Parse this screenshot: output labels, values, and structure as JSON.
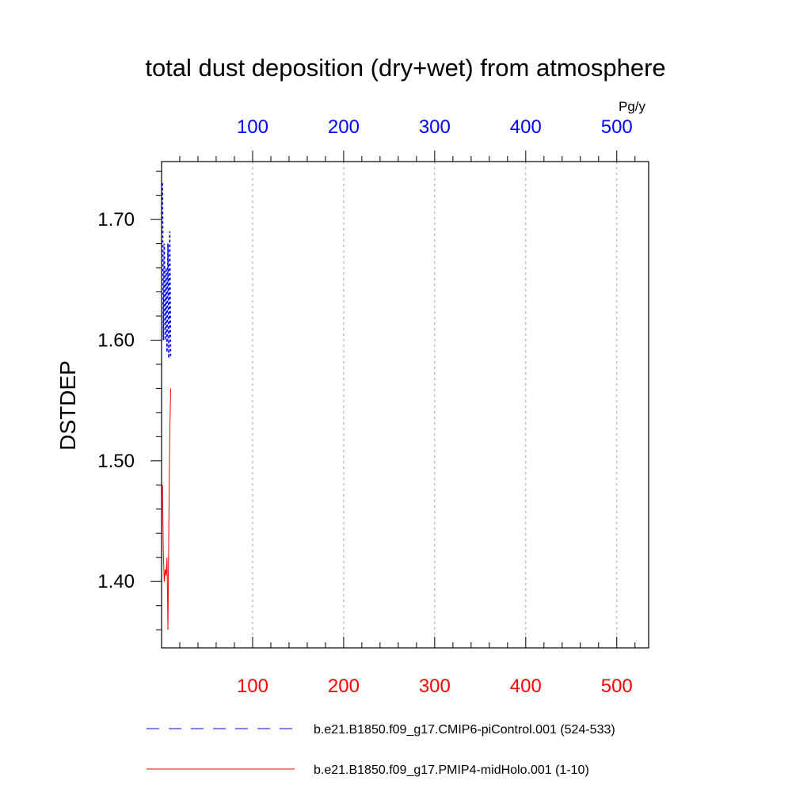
{
  "chart_data": {
    "type": "line",
    "title": "total dust deposition (dry+wet) from atmosphere",
    "ylabel": "DSTDEP",
    "top_axis_unit": "Pg/y",
    "xlim": [
      0,
      535
    ],
    "ylim": [
      1.345,
      1.748
    ],
    "x_ticks": [
      100,
      200,
      300,
      400,
      500
    ],
    "y_ticks": [
      1.4,
      1.5,
      1.6,
      1.7
    ],
    "y_tick_labels": [
      "1.40",
      "1.50",
      "1.60",
      "1.70"
    ],
    "top_tick_labels": [
      "100",
      "200",
      "300",
      "400",
      "500"
    ],
    "bottom_tick_labels": [
      "100",
      "200",
      "300",
      "400",
      "500"
    ],
    "grid": "vertical dashed at major x ticks",
    "series": [
      {
        "name": "b.e21.B1850.f09_g17.CMIP6-piControl.001 (524-533)",
        "color": "#0000ff",
        "style": "dashed",
        "x": [
          1,
          2,
          3,
          4,
          5,
          6,
          7,
          8,
          9,
          10
        ],
        "y": [
          1.73,
          1.6,
          1.68,
          1.6,
          1.66,
          1.59,
          1.68,
          1.585,
          1.69,
          1.585
        ]
      },
      {
        "name": "b.e21.B1850.f09_g17.PMIP4-midHolo.001 (1-10)",
        "color": "#ff0000",
        "style": "solid",
        "x": [
          1,
          2,
          3,
          4,
          5,
          6,
          7,
          8,
          9,
          10
        ],
        "y": [
          1.48,
          1.42,
          1.4,
          1.41,
          1.405,
          1.42,
          1.36,
          1.45,
          1.52,
          1.56
        ]
      }
    ]
  },
  "colors": {
    "top_axis_labels": "#0000ff",
    "bottom_axis_labels": "#ff0000",
    "axes": "#000000",
    "grid": "#a0a0a0"
  }
}
